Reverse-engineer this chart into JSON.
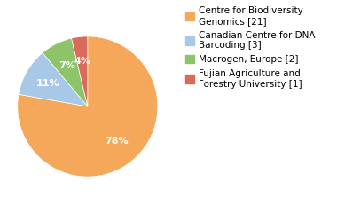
{
  "labels": [
    "Centre for Biodiversity\nGenomics [21]",
    "Canadian Centre for DNA\nBarcoding [3]",
    "Macrogen, Europe [2]",
    "Fujian Agriculture and\nForestry University [1]"
  ],
  "values": [
    21,
    3,
    2,
    1
  ],
  "colors": [
    "#F5A85A",
    "#A8C8E8",
    "#8DC46A",
    "#D96B5A"
  ],
  "background_color": "#ffffff",
  "autopct_fontsize": 8,
  "legend_fontsize": 7.5
}
